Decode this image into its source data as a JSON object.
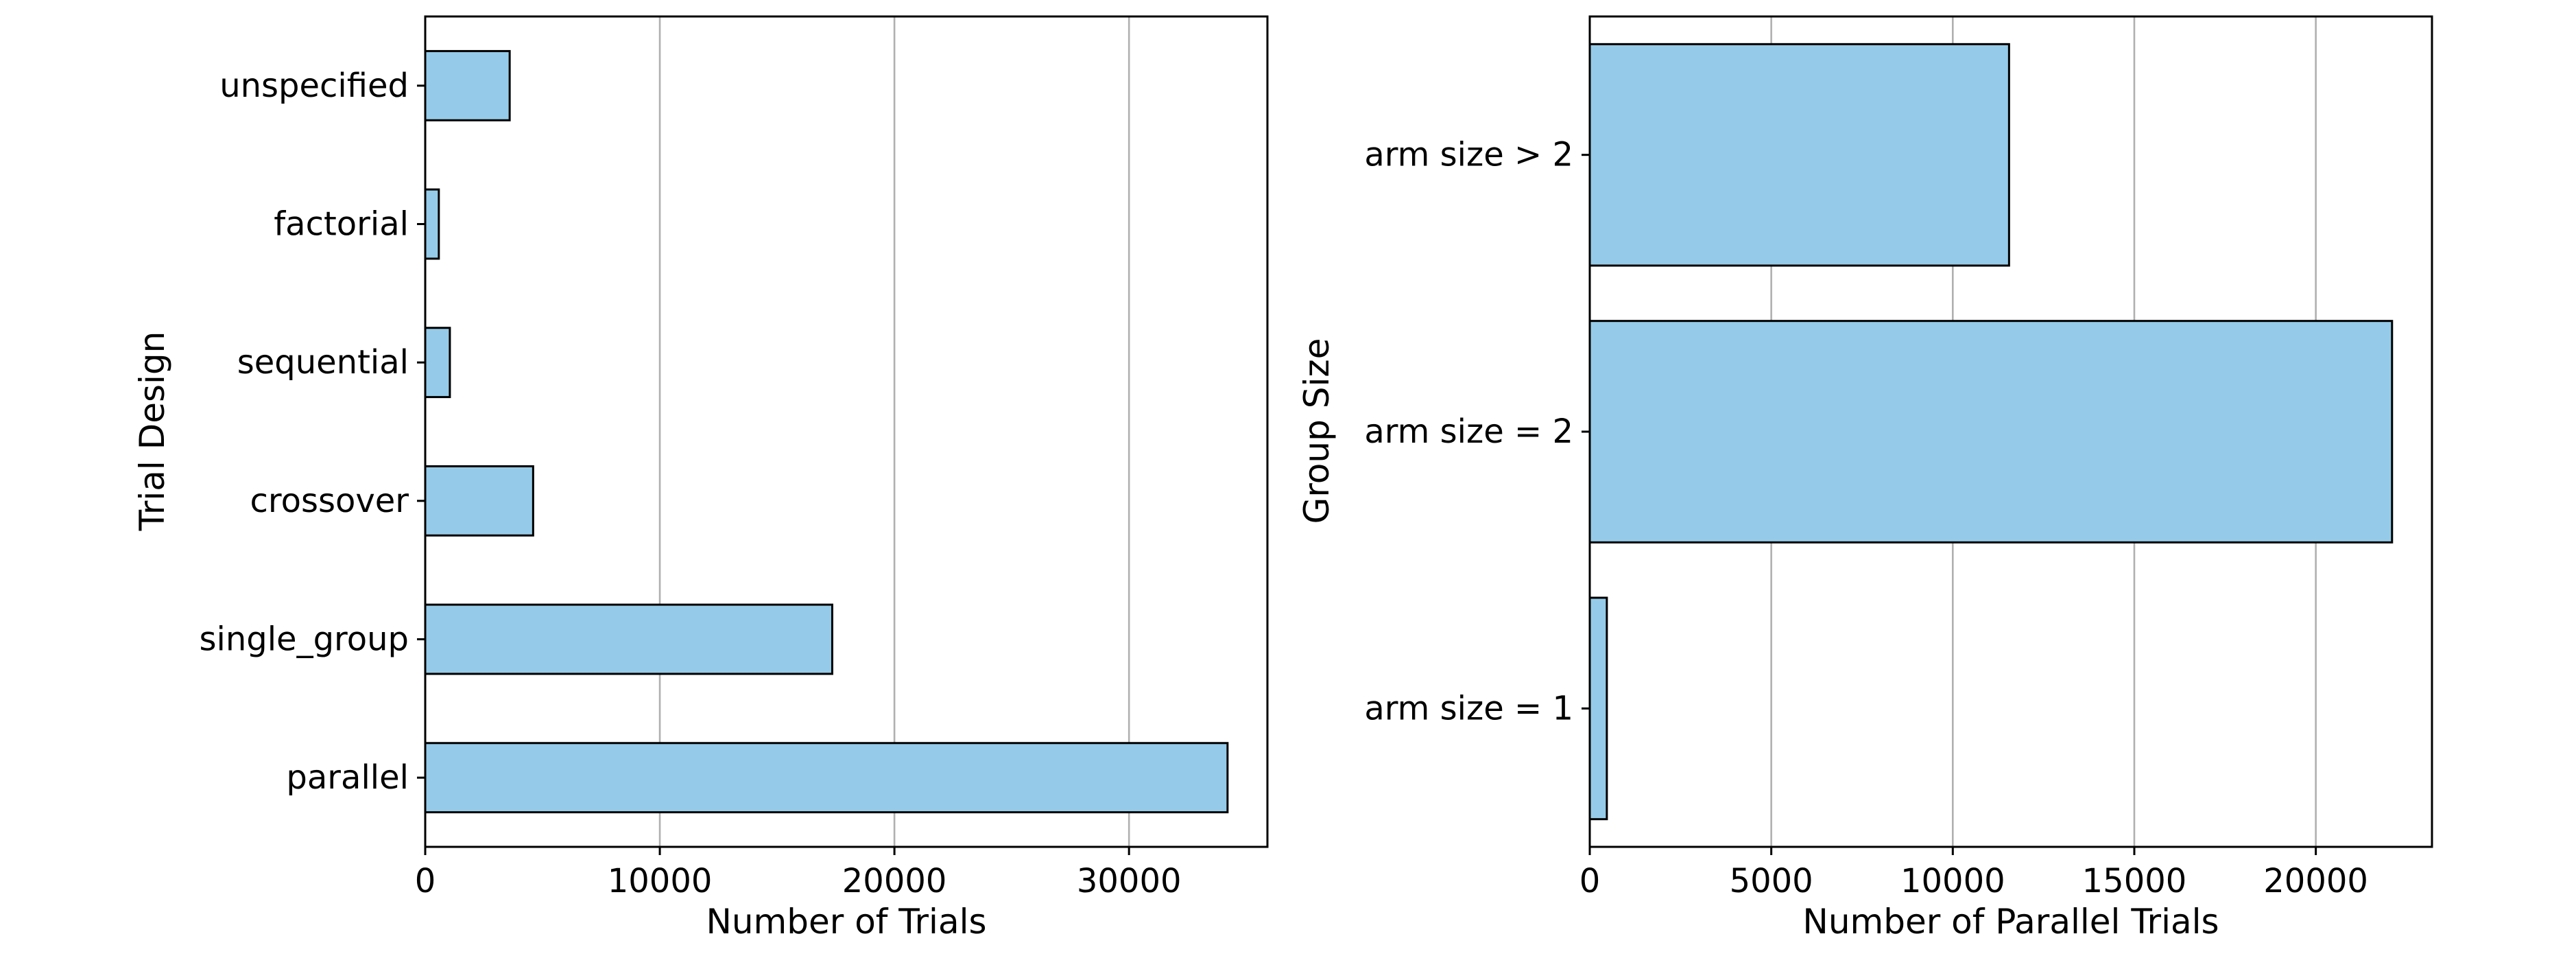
{
  "chart_data": [
    {
      "type": "bar",
      "orientation": "horizontal",
      "categories": [
        "unspecified",
        "factorial",
        "sequential",
        "crossover",
        "single_group",
        "parallel"
      ],
      "values": [
        3600,
        580,
        1050,
        4600,
        17350,
        34200
      ],
      "xlabel": "Number of Trials",
      "ylabel": "Trial Design",
      "xlim": [
        0,
        35900
      ],
      "xticks": [
        0,
        10000,
        20000,
        30000
      ],
      "xtick_labels": [
        "0",
        "10000",
        "20000",
        "30000"
      ],
      "grid": "x",
      "bar_color": "#95cbe8"
    },
    {
      "type": "bar",
      "orientation": "horizontal",
      "categories": [
        "arm size > 2",
        "arm size = 2",
        "arm size = 1"
      ],
      "values": [
        11550,
        22100,
        470
      ],
      "xlabel": "Number of Parallel Trials",
      "ylabel": "Group Size",
      "xlim": [
        0,
        23200
      ],
      "xticks": [
        0,
        5000,
        10000,
        15000,
        20000
      ],
      "xtick_labels": [
        "0",
        "5000",
        "10000",
        "15000",
        "20000"
      ],
      "grid": "x",
      "bar_color": "#95cbe8"
    }
  ]
}
